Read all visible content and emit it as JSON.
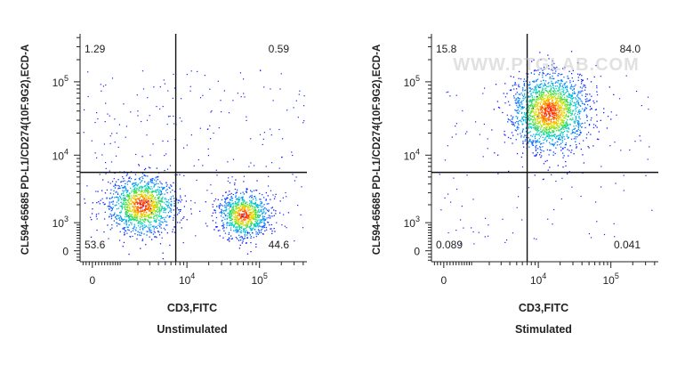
{
  "chart_data": [
    {
      "type": "scatter",
      "subtype": "flow-cytometry-density-plot",
      "xlabel": "CD3,FITC",
      "ylabel": "CL594-65685 PD-L1/CD274(10F.9G2),ECD-A",
      "caption": "Unstimulated",
      "x_scale": "biexponential",
      "y_scale": "biexponential",
      "x_ticks": [
        "0",
        "10^4",
        "10^5"
      ],
      "y_ticks": [
        "0",
        "10^3",
        "10^4",
        "10^5"
      ],
      "gate": {
        "x": 7000,
        "y": 5800
      },
      "quadrants": {
        "upper_left": "1.29",
        "upper_right": "0.59",
        "lower_left": "53.6",
        "lower_right": "44.6"
      },
      "populations": [
        {
          "name": "CD3- PD-L1-",
          "center_x": 2300,
          "center_y": 2000
        },
        {
          "name": "CD3+ PD-L1-",
          "center_x": 60000,
          "center_y": 1400
        }
      ],
      "grid": false,
      "legend": "none",
      "watermark": ""
    },
    {
      "type": "scatter",
      "subtype": "flow-cytometry-density-plot",
      "xlabel": "CD3,FITC",
      "ylabel": "CL594-65685 PD-L1/CD274(10F.9G2),ECD-A",
      "caption": "Stimulated",
      "x_scale": "biexponential",
      "y_scale": "biexponential",
      "x_ticks": [
        "0",
        "10^4",
        "10^5"
      ],
      "y_ticks": [
        "0",
        "10^3",
        "10^4",
        "10^5"
      ],
      "gate": {
        "x": 7000,
        "y": 5800
      },
      "quadrants": {
        "upper_left": "15.8",
        "upper_right": "84.0",
        "lower_left": "0.089",
        "lower_right": "0.041"
      },
      "populations": [
        {
          "name": "CD3+ PD-L1+",
          "center_x": 14000,
          "center_y": 40000
        }
      ],
      "grid": false,
      "legend": "none",
      "watermark": "WWW.PTGLAB.COM"
    }
  ],
  "colors": {
    "axis": "#222222",
    "density_low": "#1a1aff",
    "density_mid": "#00c8c8",
    "density_high": "#ffe000",
    "density_peak": "#ff2000"
  }
}
